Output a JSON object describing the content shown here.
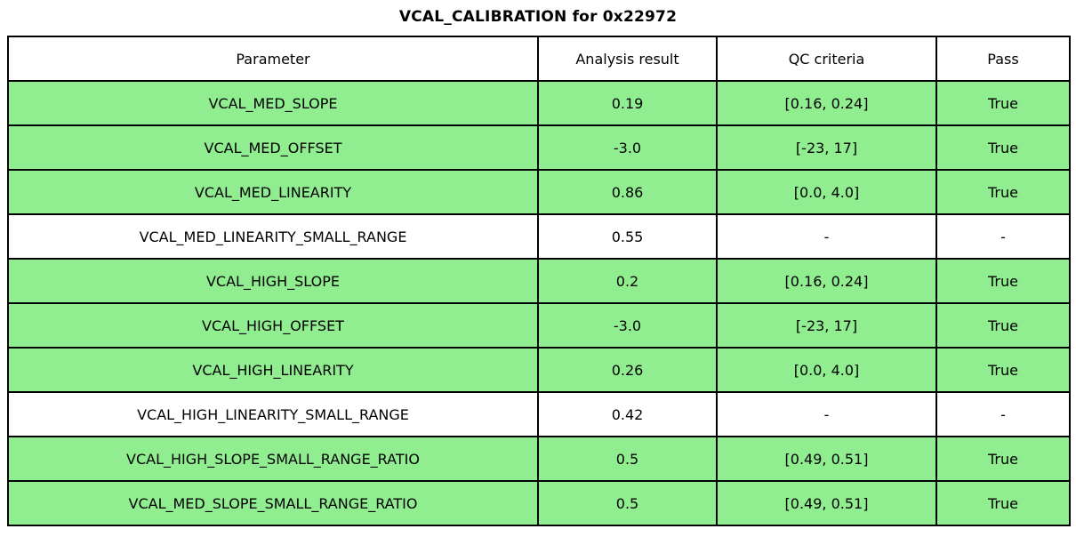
{
  "chart_data": {
    "type": "table",
    "title": "VCAL_CALIBRATION for 0x22972",
    "columns": [
      "Parameter",
      "Analysis result",
      "QC criteria",
      "Pass"
    ],
    "rows": [
      {
        "parameter": "VCAL_MED_SLOPE",
        "analysis_result": "0.19",
        "qc_criteria": "[0.16, 0.24]",
        "pass": "True",
        "row_color": "#90ee90"
      },
      {
        "parameter": "VCAL_MED_OFFSET",
        "analysis_result": "-3.0",
        "qc_criteria": "[-23, 17]",
        "pass": "True",
        "row_color": "#90ee90"
      },
      {
        "parameter": "VCAL_MED_LINEARITY",
        "analysis_result": "0.86",
        "qc_criteria": "[0.0, 4.0]",
        "pass": "True",
        "row_color": "#90ee90"
      },
      {
        "parameter": "VCAL_MED_LINEARITY_SMALL_RANGE",
        "analysis_result": "0.55",
        "qc_criteria": "-",
        "pass": "-",
        "row_color": "#ffffff"
      },
      {
        "parameter": "VCAL_HIGH_SLOPE",
        "analysis_result": "0.2",
        "qc_criteria": "[0.16, 0.24]",
        "pass": "True",
        "row_color": "#90ee90"
      },
      {
        "parameter": "VCAL_HIGH_OFFSET",
        "analysis_result": "-3.0",
        "qc_criteria": "[-23, 17]",
        "pass": "True",
        "row_color": "#90ee90"
      },
      {
        "parameter": "VCAL_HIGH_LINEARITY",
        "analysis_result": "0.26",
        "qc_criteria": "[0.0, 4.0]",
        "pass": "True",
        "row_color": "#90ee90"
      },
      {
        "parameter": "VCAL_HIGH_LINEARITY_SMALL_RANGE",
        "analysis_result": "0.42",
        "qc_criteria": "-",
        "pass": "-",
        "row_color": "#ffffff"
      },
      {
        "parameter": "VCAL_HIGH_SLOPE_SMALL_RANGE_RATIO",
        "analysis_result": "0.5",
        "qc_criteria": "[0.49, 0.51]",
        "pass": "True",
        "row_color": "#90ee90"
      },
      {
        "parameter": "VCAL_MED_SLOPE_SMALL_RANGE_RATIO",
        "analysis_result": "0.5",
        "qc_criteria": "[0.49, 0.51]",
        "pass": "True",
        "row_color": "#90ee90"
      }
    ],
    "layout_hints": {
      "header_background": "#ffffff",
      "pass_row_background": "#90ee90",
      "neutral_row_background": "#ffffff",
      "border_color": "#000000",
      "text_color": "#000000"
    }
  }
}
